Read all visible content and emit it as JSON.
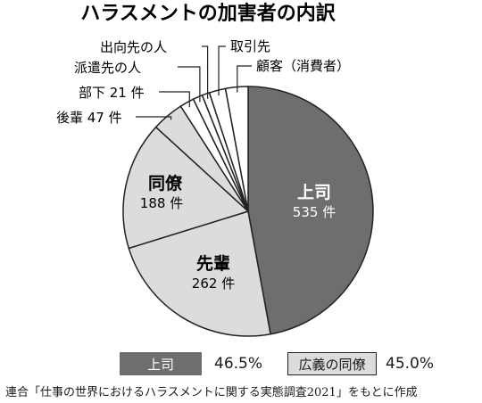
{
  "chart_data": {
    "type": "pie",
    "title": "ハラスメントの加害者の内訳",
    "slices": [
      {
        "label": "上司",
        "value": 535,
        "value_text": "535 件",
        "color": "#6e6e6e",
        "text_color": "#ffffff"
      },
      {
        "label": "先輩",
        "value": 262,
        "value_text": "262 件",
        "color": "#dcdcdc",
        "text_color": "#1a1a1a"
      },
      {
        "label": "同僚",
        "value": 188,
        "value_text": "188 件",
        "color": "#dcdcdc",
        "text_color": "#1a1a1a"
      },
      {
        "label": "後輩 47 件",
        "value": 47,
        "color": "#dcdcdc"
      },
      {
        "label": "部下 21 件",
        "value": 21,
        "color": "#ffffff"
      },
      {
        "label": "派遣先の人",
        "value": 14,
        "color": "#ffffff"
      },
      {
        "label": "出向先の人",
        "value": 11,
        "color": "#ffffff"
      },
      {
        "label": "取引先",
        "value": 24,
        "color": "#ffffff"
      },
      {
        "label": "顧客（消費者）",
        "value": 33,
        "color": "#ffffff"
      }
    ],
    "legend": [
      {
        "label": "上司",
        "percent": "46.5%"
      },
      {
        "label": "広義の同僚",
        "percent": "45.0%"
      }
    ]
  },
  "source": "連合「仕事の世界におけるハラスメントに関する実態調査2021」をもとに作成"
}
